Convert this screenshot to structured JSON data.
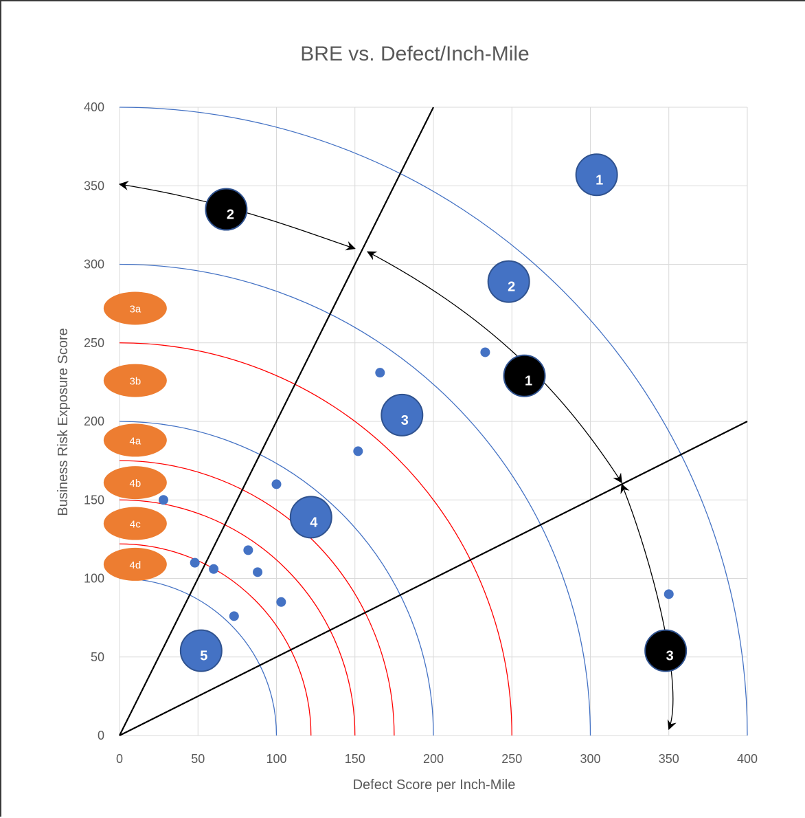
{
  "chart_data": {
    "type": "scatter",
    "title": "BRE vs. Defect/Inch-Mile",
    "xlabel": "Defect Score per Inch-Mile",
    "ylabel": "Business Risk Exposure Score",
    "xlim": [
      0,
      400
    ],
    "ylim": [
      0,
      400
    ],
    "x_ticks": [
      "0",
      "50",
      "100",
      "150",
      "200",
      "250",
      "300",
      "350",
      "400"
    ],
    "y_ticks": [
      "0",
      "50",
      "100",
      "150",
      "200",
      "250",
      "300",
      "350",
      "400"
    ],
    "grid": true,
    "points": [
      {
        "x": 28,
        "y": 150
      },
      {
        "x": 48,
        "y": 110
      },
      {
        "x": 60,
        "y": 106
      },
      {
        "x": 73,
        "y": 76
      },
      {
        "x": 82,
        "y": 118
      },
      {
        "x": 88,
        "y": 104
      },
      {
        "x": 100,
        "y": 160
      },
      {
        "x": 103,
        "y": 85
      },
      {
        "x": 152,
        "y": 181
      },
      {
        "x": 166,
        "y": 231
      },
      {
        "x": 233,
        "y": 244
      },
      {
        "x": 350,
        "y": 90
      }
    ],
    "arcs": [
      {
        "radius": 100,
        "color": "#4472c4"
      },
      {
        "radius": 122,
        "color": "#ff0000"
      },
      {
        "radius": 150,
        "color": "#ff0000"
      },
      {
        "radius": 175,
        "color": "#ff0000"
      },
      {
        "radius": 200,
        "color": "#4472c4"
      },
      {
        "radius": 250,
        "color": "#ff0000"
      },
      {
        "radius": 300,
        "color": "#4472c4"
      },
      {
        "radius": 400,
        "color": "#4472c4"
      }
    ],
    "boundary_lines": [
      {
        "from": [
          0,
          0
        ],
        "to": [
          200,
          400
        ]
      },
      {
        "from": [
          0,
          0
        ],
        "to": [
          400,
          200
        ]
      }
    ],
    "zone_bubbles": [
      {
        "label": "1",
        "x": 304,
        "y": 357
      },
      {
        "label": "2",
        "x": 248,
        "y": 289
      },
      {
        "label": "3",
        "x": 180,
        "y": 204
      },
      {
        "label": "4",
        "x": 122,
        "y": 139
      },
      {
        "label": "5",
        "x": 52,
        "y": 54
      }
    ],
    "sector_markers": [
      {
        "label": "1",
        "x": 258,
        "y": 229
      },
      {
        "label": "2",
        "x": 68,
        "y": 335
      },
      {
        "label": "3",
        "x": 348,
        "y": 54
      }
    ],
    "ring_labels": [
      "3a",
      "3b",
      "4a",
      "4b",
      "4c",
      "4d"
    ],
    "colors": {
      "blue": "#4472c4",
      "red": "#ff0000",
      "orange": "#ed7d31",
      "black": "#000000",
      "grid": "#d9d9d9"
    }
  }
}
